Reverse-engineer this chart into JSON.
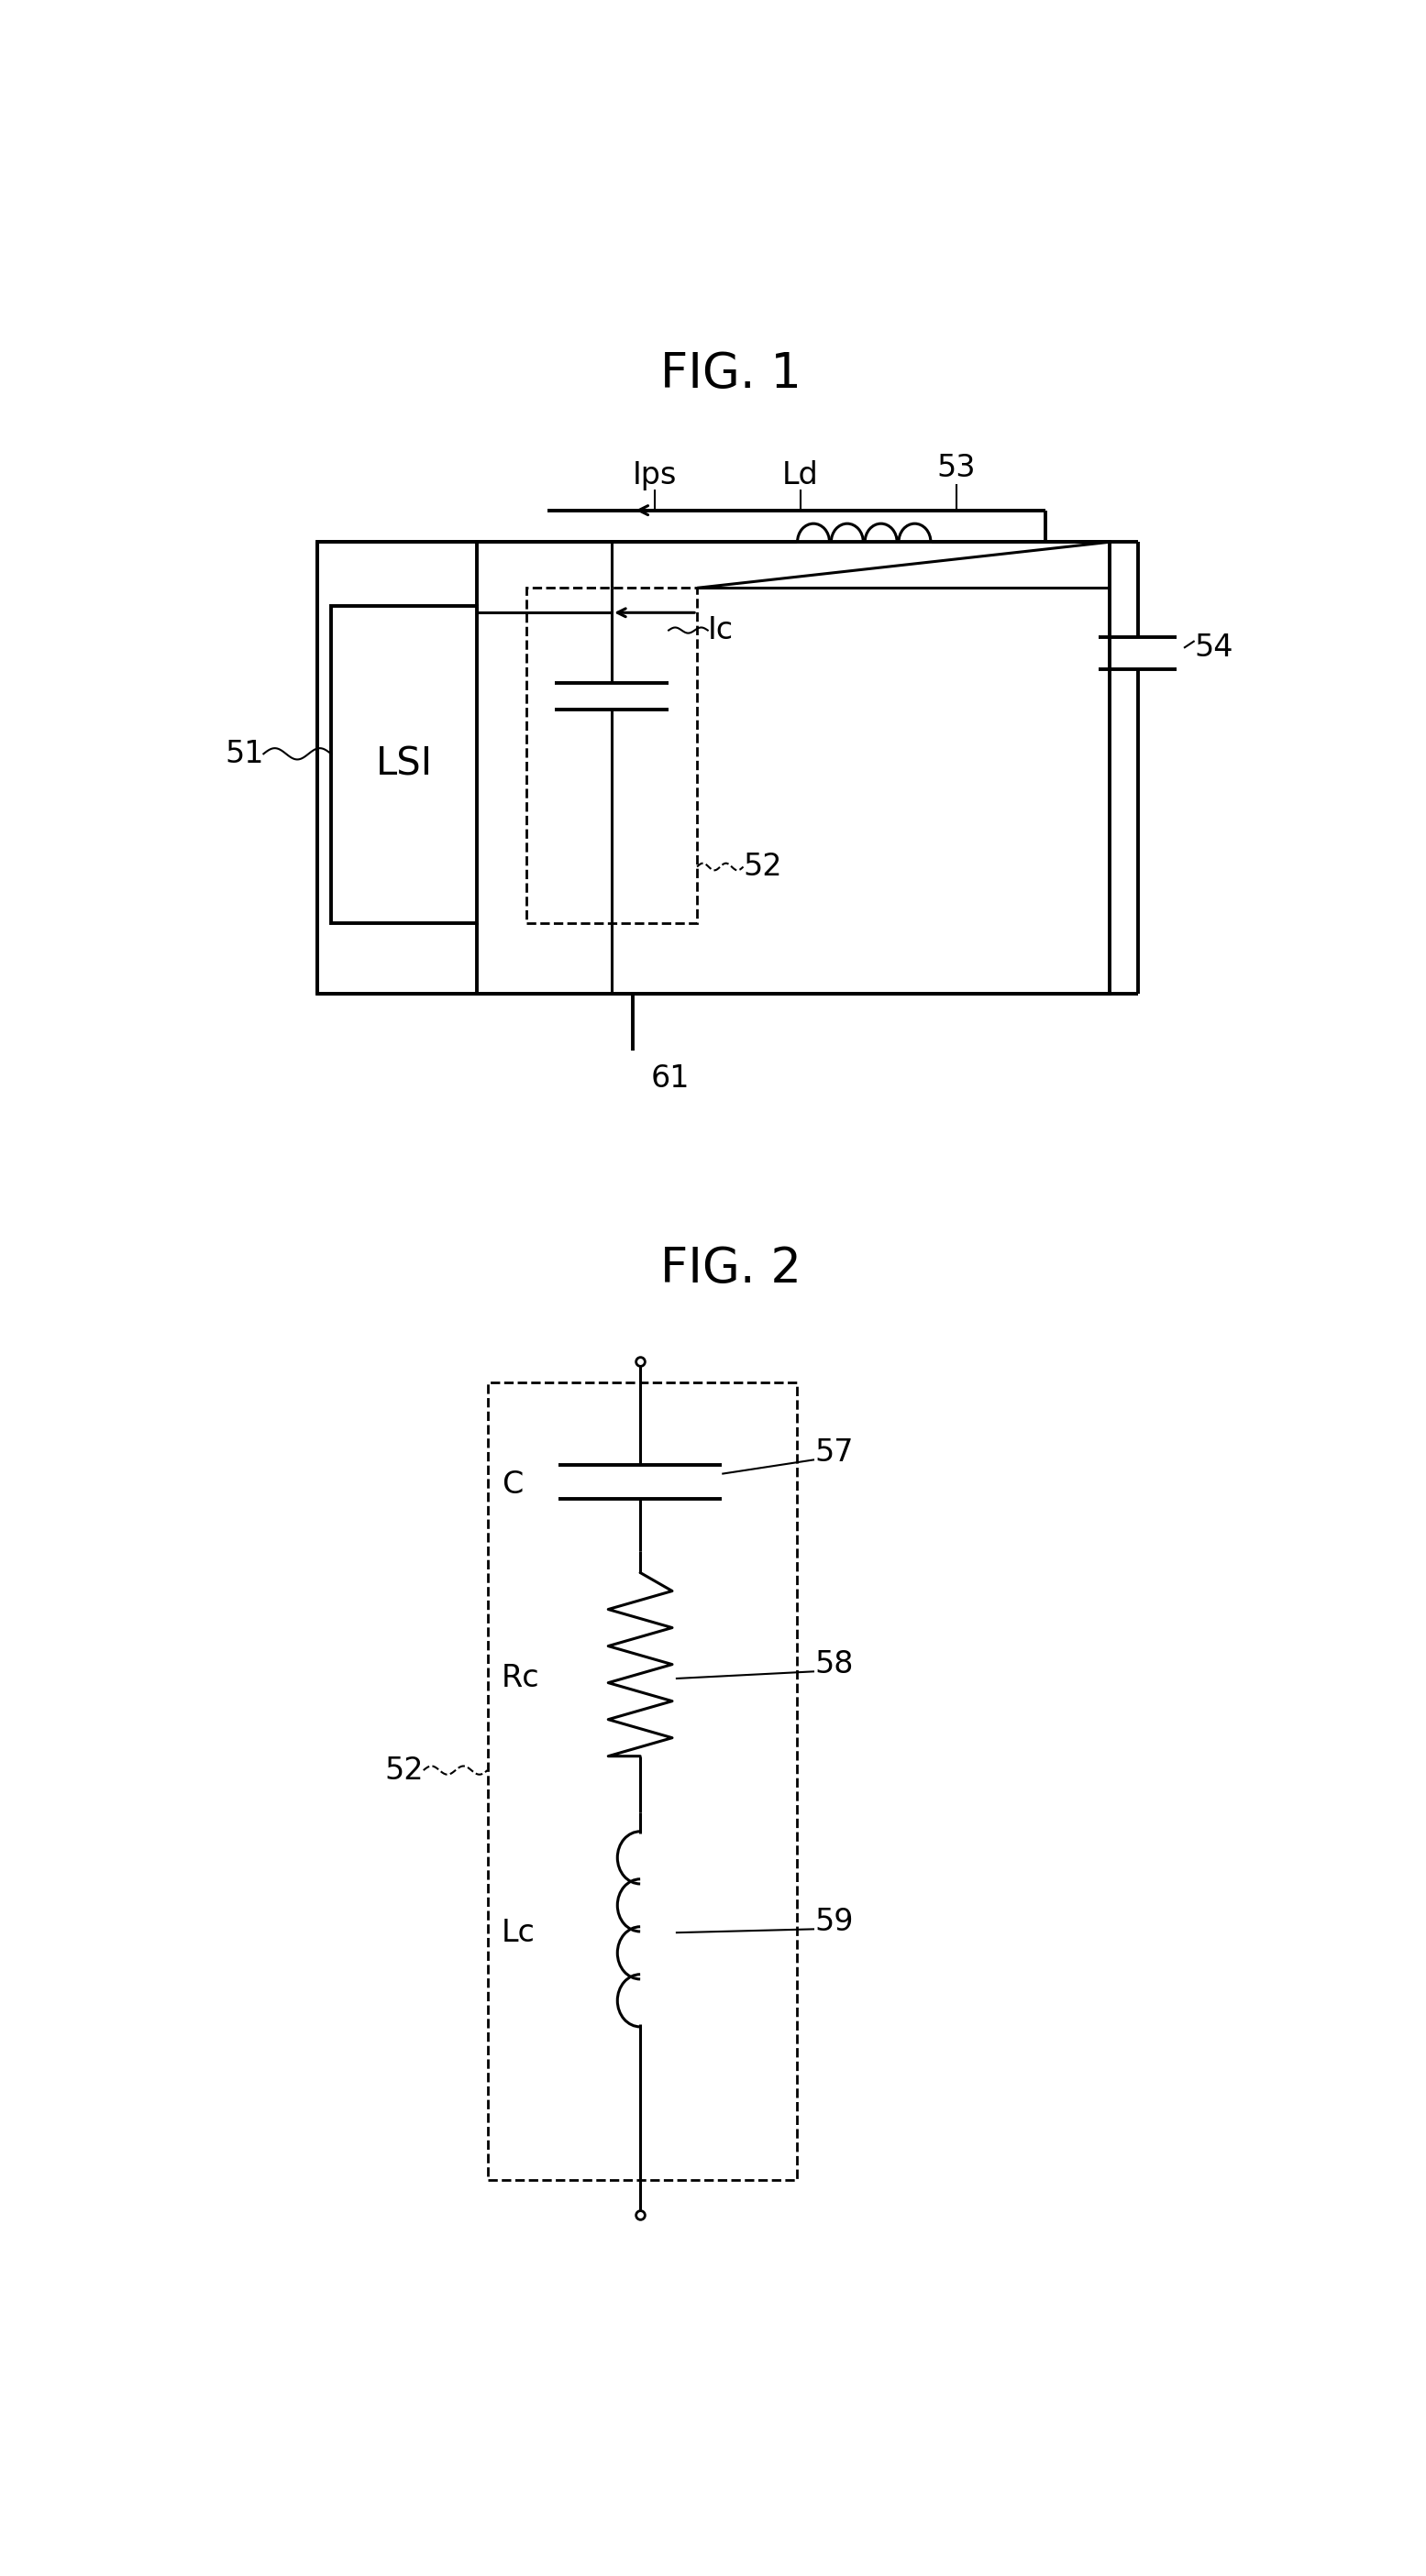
{
  "fig1_title": "FIG. 1",
  "fig2_title": "FIG. 2",
  "background_color": "#ffffff",
  "line_color": "#000000",
  "labels": {
    "Ips": "Ips",
    "Ld": "Ld",
    "53": "53",
    "54": "54",
    "51": "51",
    "LSI": "LSI",
    "Ic": "Ic",
    "52": "52",
    "61": "61",
    "C": "C",
    "Rc": "Rc",
    "Lc": "Lc",
    "57": "57",
    "58": "58",
    "59": "59"
  },
  "title_fontsize": 38,
  "label_fontsize": 24,
  "lsi_fontsize": 30
}
